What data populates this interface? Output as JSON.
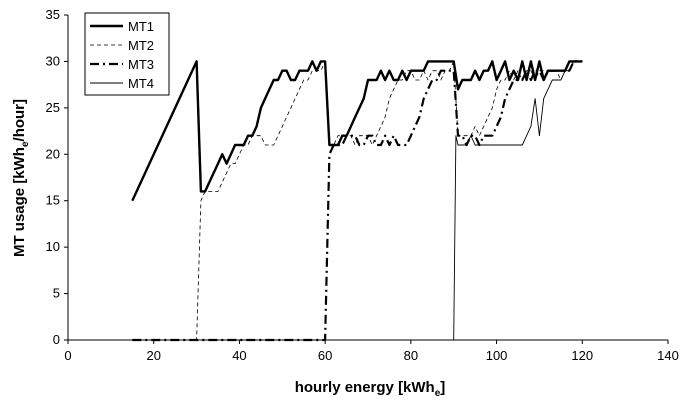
{
  "chart_data": {
    "type": "line",
    "xlabel": "hourly energy [kWh",
    "xlabel_sub": "e",
    "xlabel_end": "]",
    "ylabel": "MT usage [kWh",
    "ylabel_sub": "e",
    "ylabel_end": "/hour]",
    "xlim": [
      0,
      140
    ],
    "ylim": [
      0,
      35
    ],
    "xticks": [
      0,
      20,
      40,
      60,
      80,
      100,
      120,
      140
    ],
    "yticks": [
      0,
      5,
      10,
      15,
      20,
      25,
      30,
      35
    ],
    "grid": false,
    "legend_position": "top-left",
    "series": [
      {
        "name": "MT1",
        "style": "solid-thick",
        "points": [
          [
            15,
            15
          ],
          [
            30,
            30
          ],
          [
            31,
            16
          ],
          [
            32,
            16
          ],
          [
            33,
            17
          ],
          [
            34,
            18
          ],
          [
            35,
            19
          ],
          [
            36,
            20
          ],
          [
            37,
            19
          ],
          [
            38,
            20
          ],
          [
            39,
            21
          ],
          [
            40,
            21
          ],
          [
            41,
            21
          ],
          [
            42,
            22
          ],
          [
            43,
            22
          ],
          [
            44,
            23
          ],
          [
            45,
            25
          ],
          [
            46,
            26
          ],
          [
            47,
            27
          ],
          [
            48,
            28
          ],
          [
            49,
            28
          ],
          [
            50,
            29
          ],
          [
            51,
            29
          ],
          [
            52,
            28
          ],
          [
            53,
            28
          ],
          [
            54,
            29
          ],
          [
            55,
            29
          ],
          [
            56,
            29
          ],
          [
            57,
            30
          ],
          [
            58,
            29
          ],
          [
            59,
            30
          ],
          [
            60,
            30
          ],
          [
            61,
            21
          ],
          [
            62,
            21
          ],
          [
            63,
            21
          ],
          [
            64,
            22
          ],
          [
            65,
            22
          ],
          [
            66,
            23
          ],
          [
            67,
            24
          ],
          [
            68,
            25
          ],
          [
            69,
            26
          ],
          [
            70,
            28
          ],
          [
            71,
            28
          ],
          [
            72,
            28
          ],
          [
            73,
            29
          ],
          [
            74,
            28
          ],
          [
            75,
            29
          ],
          [
            76,
            28
          ],
          [
            77,
            28
          ],
          [
            78,
            29
          ],
          [
            79,
            28
          ],
          [
            80,
            29
          ],
          [
            81,
            29
          ],
          [
            82,
            29
          ],
          [
            83,
            29
          ],
          [
            84,
            30
          ],
          [
            85,
            30
          ],
          [
            86,
            30
          ],
          [
            87,
            30
          ],
          [
            88,
            30
          ],
          [
            89,
            30
          ],
          [
            90,
            30
          ],
          [
            91,
            27
          ],
          [
            92,
            28
          ],
          [
            93,
            28
          ],
          [
            94,
            28
          ],
          [
            95,
            29
          ],
          [
            96,
            28
          ],
          [
            97,
            29
          ],
          [
            98,
            29
          ],
          [
            99,
            30
          ],
          [
            100,
            28
          ],
          [
            101,
            29
          ],
          [
            102,
            30
          ],
          [
            103,
            28
          ],
          [
            104,
            29
          ],
          [
            105,
            28
          ],
          [
            106,
            30
          ],
          [
            107,
            28
          ],
          [
            108,
            30
          ],
          [
            109,
            28
          ],
          [
            110,
            30
          ],
          [
            111,
            28
          ],
          [
            112,
            29
          ],
          [
            113,
            29
          ],
          [
            114,
            29
          ],
          [
            115,
            29
          ],
          [
            116,
            29
          ],
          [
            117,
            30
          ],
          [
            118,
            30
          ],
          [
            119,
            30
          ],
          [
            120,
            30
          ]
        ]
      },
      {
        "name": "MT2",
        "style": "dashed-thin",
        "points": [
          [
            15,
            0
          ],
          [
            30,
            0
          ],
          [
            31,
            15
          ],
          [
            32,
            16
          ],
          [
            33,
            16
          ],
          [
            34,
            16
          ],
          [
            35,
            16
          ],
          [
            36,
            17
          ],
          [
            37,
            18
          ],
          [
            38,
            19
          ],
          [
            39,
            19
          ],
          [
            40,
            20
          ],
          [
            41,
            21
          ],
          [
            42,
            21
          ],
          [
            43,
            22
          ],
          [
            44,
            22
          ],
          [
            45,
            22
          ],
          [
            46,
            21
          ],
          [
            47,
            21
          ],
          [
            48,
            21
          ],
          [
            49,
            22
          ],
          [
            50,
            23
          ],
          [
            51,
            24
          ],
          [
            52,
            25
          ],
          [
            53,
            26
          ],
          [
            54,
            27
          ],
          [
            55,
            28
          ],
          [
            56,
            28
          ],
          [
            57,
            29
          ],
          [
            58,
            29
          ],
          [
            59,
            29
          ],
          [
            60,
            30
          ],
          [
            61,
            21
          ],
          [
            62,
            21
          ],
          [
            63,
            22
          ],
          [
            64,
            22
          ],
          [
            65,
            22
          ],
          [
            66,
            22
          ],
          [
            67,
            21
          ],
          [
            68,
            22
          ],
          [
            69,
            22
          ],
          [
            70,
            22
          ],
          [
            71,
            21
          ],
          [
            72,
            22
          ],
          [
            73,
            23
          ],
          [
            74,
            24
          ],
          [
            75,
            26
          ],
          [
            76,
            27
          ],
          [
            77,
            28
          ],
          [
            78,
            28
          ],
          [
            79,
            29
          ],
          [
            80,
            29
          ],
          [
            81,
            28
          ],
          [
            82,
            28
          ],
          [
            83,
            29
          ],
          [
            84,
            28
          ],
          [
            85,
            29
          ],
          [
            86,
            29
          ],
          [
            87,
            28
          ],
          [
            88,
            29
          ],
          [
            89,
            29
          ],
          [
            90,
            30
          ],
          [
            91,
            22
          ],
          [
            92,
            22
          ],
          [
            93,
            22
          ],
          [
            94,
            22
          ],
          [
            95,
            23
          ],
          [
            96,
            22
          ],
          [
            97,
            23
          ],
          [
            98,
            24
          ],
          [
            99,
            25
          ],
          [
            100,
            27
          ],
          [
            101,
            28
          ],
          [
            102,
            28
          ],
          [
            103,
            29
          ],
          [
            104,
            28
          ],
          [
            105,
            29
          ],
          [
            106,
            28
          ],
          [
            107,
            29
          ],
          [
            108,
            29
          ],
          [
            109,
            28
          ],
          [
            110,
            29
          ],
          [
            111,
            29
          ],
          [
            112,
            29
          ],
          [
            113,
            29
          ],
          [
            114,
            29
          ],
          [
            115,
            28
          ],
          [
            116,
            29
          ],
          [
            117,
            29
          ],
          [
            118,
            30
          ],
          [
            119,
            30
          ],
          [
            120,
            30
          ]
        ]
      },
      {
        "name": "MT3",
        "style": "dashdot-thick",
        "points": [
          [
            15,
            0
          ],
          [
            60,
            0
          ],
          [
            61,
            20
          ],
          [
            62,
            21
          ],
          [
            63,
            21
          ],
          [
            64,
            21
          ],
          [
            65,
            22
          ],
          [
            66,
            22
          ],
          [
            67,
            22
          ],
          [
            68,
            21
          ],
          [
            69,
            21
          ],
          [
            70,
            22
          ],
          [
            71,
            22
          ],
          [
            72,
            21
          ],
          [
            73,
            21
          ],
          [
            74,
            22
          ],
          [
            75,
            21
          ],
          [
            76,
            22
          ],
          [
            77,
            21
          ],
          [
            78,
            21
          ],
          [
            79,
            21
          ],
          [
            80,
            22
          ],
          [
            81,
            23
          ],
          [
            82,
            24
          ],
          [
            83,
            26
          ],
          [
            84,
            27
          ],
          [
            85,
            28
          ],
          [
            86,
            28
          ],
          [
            87,
            29
          ],
          [
            88,
            29
          ],
          [
            89,
            29
          ],
          [
            90,
            29
          ],
          [
            91,
            22
          ],
          [
            92,
            22
          ],
          [
            93,
            21
          ],
          [
            94,
            22
          ],
          [
            95,
            22
          ],
          [
            96,
            21
          ],
          [
            97,
            22
          ],
          [
            98,
            22
          ],
          [
            99,
            22
          ],
          [
            100,
            23
          ],
          [
            101,
            24
          ],
          [
            102,
            26
          ],
          [
            103,
            27
          ],
          [
            104,
            28
          ],
          [
            105,
            28
          ],
          [
            106,
            28
          ],
          [
            107,
            29
          ],
          [
            108,
            28
          ],
          [
            109,
            29
          ],
          [
            110,
            29
          ],
          [
            111,
            28
          ],
          [
            112,
            29
          ],
          [
            113,
            29
          ],
          [
            114,
            29
          ],
          [
            115,
            29
          ],
          [
            116,
            29
          ],
          [
            117,
            29
          ],
          [
            118,
            30
          ],
          [
            119,
            30
          ],
          [
            120,
            30
          ]
        ]
      },
      {
        "name": "MT4",
        "style": "solid-thin",
        "points": [
          [
            90,
            0
          ],
          [
            90.5,
            22
          ],
          [
            91,
            21
          ],
          [
            92,
            21
          ],
          [
            93,
            21
          ],
          [
            94,
            22
          ],
          [
            95,
            21
          ],
          [
            96,
            21
          ],
          [
            97,
            21
          ],
          [
            98,
            21
          ],
          [
            99,
            21
          ],
          [
            100,
            21
          ],
          [
            101,
            21
          ],
          [
            102,
            21
          ],
          [
            103,
            21
          ],
          [
            104,
            21
          ],
          [
            105,
            21
          ],
          [
            106,
            21
          ],
          [
            107,
            22
          ],
          [
            108,
            23
          ],
          [
            109,
            26
          ],
          [
            110,
            22
          ],
          [
            111,
            26
          ],
          [
            112,
            27
          ],
          [
            113,
            28
          ],
          [
            114,
            28
          ],
          [
            115,
            28
          ],
          [
            116,
            29
          ],
          [
            117,
            29
          ],
          [
            118,
            30
          ],
          [
            119,
            30
          ],
          [
            120,
            30
          ]
        ]
      }
    ]
  }
}
